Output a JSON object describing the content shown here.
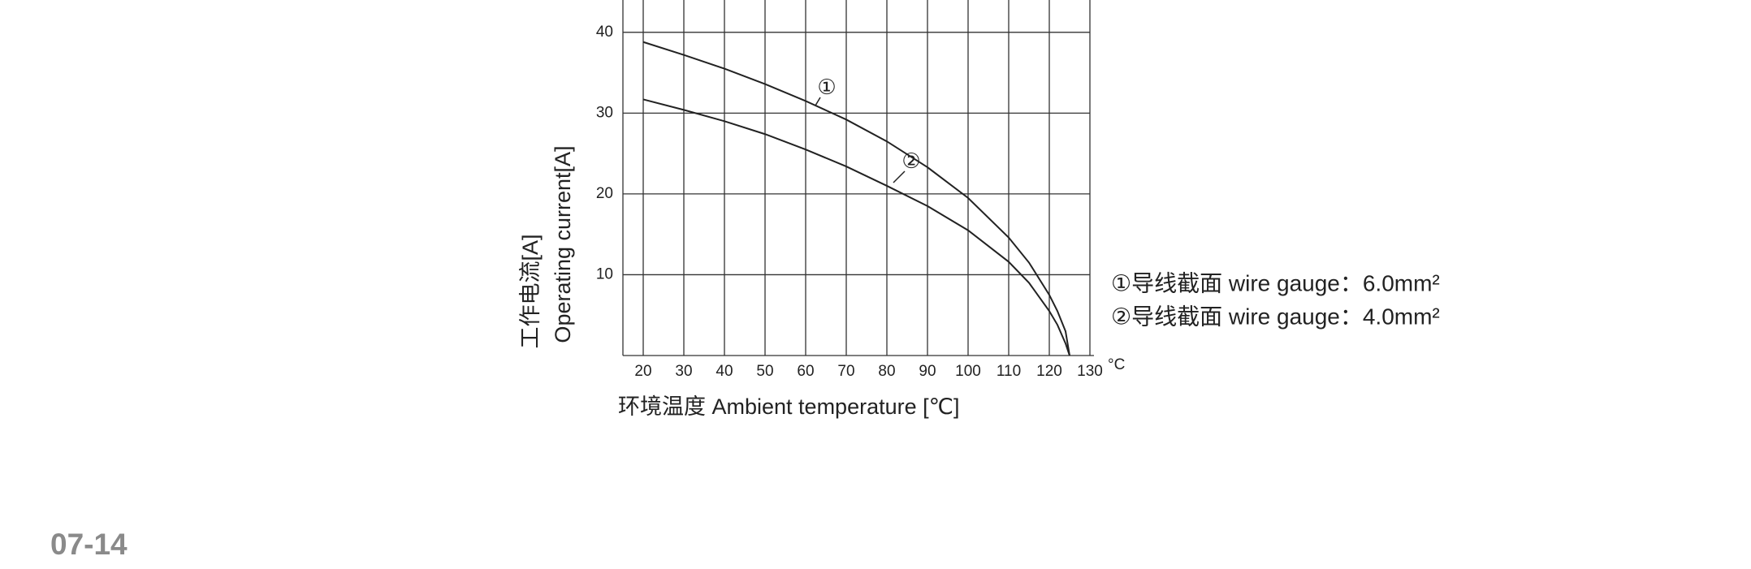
{
  "chart_data": {
    "type": "line",
    "y_label_cn": "工作电流[A]",
    "y_label": "Operating current[A]",
    "x_label": "环境温度 Ambient temperature [℃]",
    "x_unit": "°C",
    "x": [
      20,
      30,
      40,
      50,
      60,
      70,
      80,
      90,
      100,
      110,
      115,
      120,
      122,
      124,
      125
    ],
    "series": [
      {
        "name": "①导线截面 wire gauge：6.0mm²",
        "color": "#222222",
        "marker": "①",
        "values": [
          38.8,
          37.2,
          35.5,
          33.6,
          31.5,
          29.2,
          26.5,
          23.3,
          19.5,
          14.6,
          11.5,
          7.5,
          5.5,
          3,
          0
        ]
      },
      {
        "name": "②导线截面 wire gauge：4.0mm²",
        "color": "#222222",
        "marker": "②",
        "values": [
          31.7,
          30.4,
          29,
          27.4,
          25.5,
          23.4,
          21,
          18.5,
          15.5,
          11.6,
          9,
          5.5,
          3.8,
          1.5,
          0
        ]
      }
    ],
    "xlim": [
      15,
      130
    ],
    "ylim": [
      0,
      44
    ],
    "xticks": [
      20,
      30,
      40,
      50,
      60,
      70,
      80,
      90,
      100,
      110,
      120,
      130
    ],
    "yticks": [
      10,
      20,
      30,
      40
    ],
    "grid": true
  },
  "page_number": "07-14"
}
